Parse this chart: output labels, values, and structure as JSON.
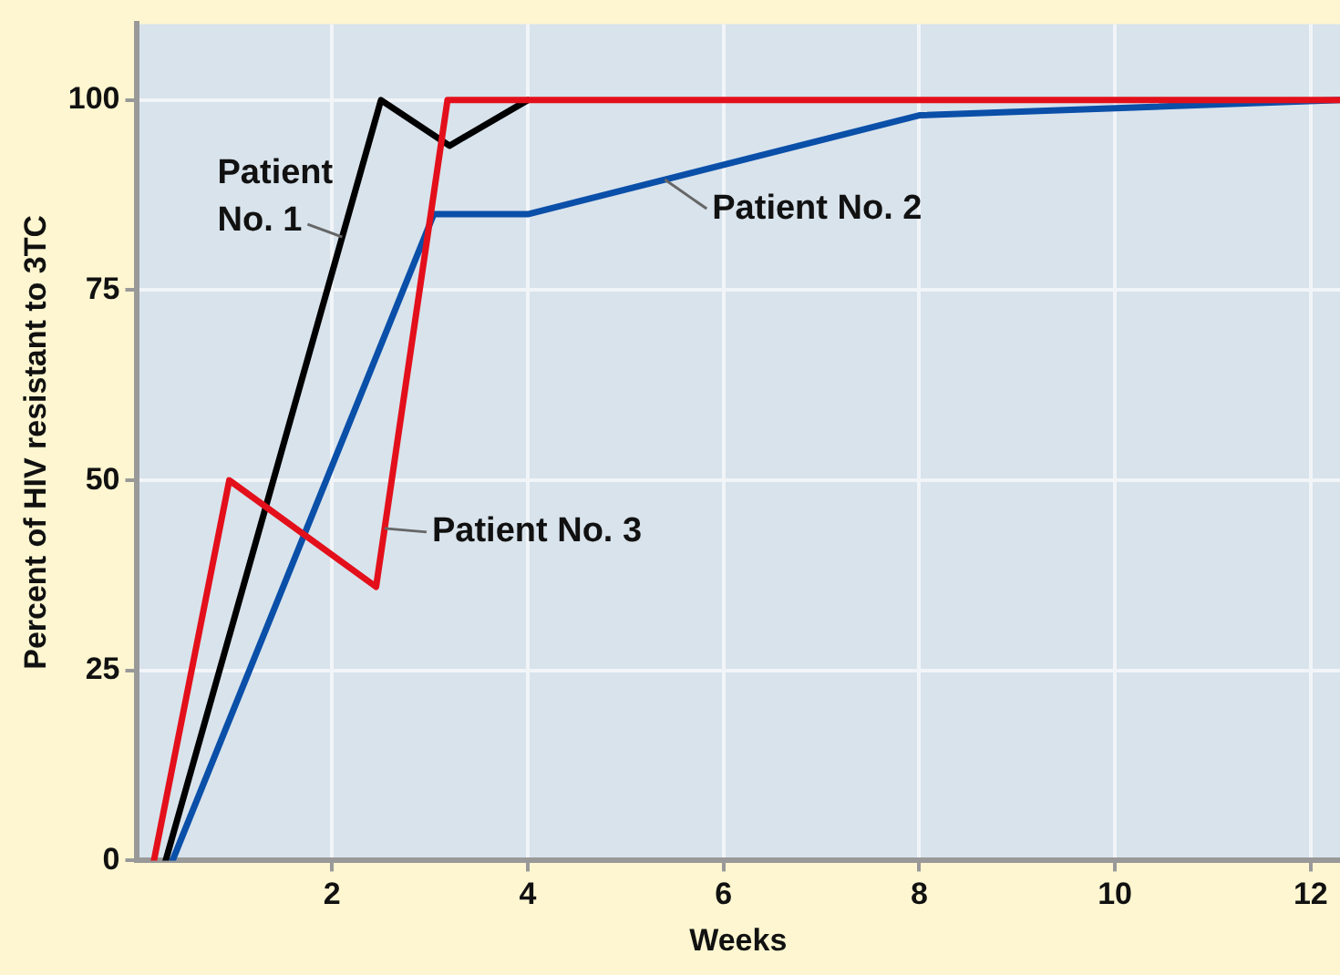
{
  "chart_data": {
    "type": "line",
    "xlabel": "Weeks",
    "ylabel": "Percent of HIV resistant to 3TC",
    "xlim": [
      0,
      12.3
    ],
    "xticks": [
      2,
      4,
      6,
      8,
      10,
      12
    ],
    "ylim": [
      0,
      110
    ],
    "yticks": [
      0,
      25,
      50,
      75,
      100
    ],
    "grid": true,
    "legend": false,
    "marker": "none",
    "line_style": "solid",
    "series": [
      {
        "name": "Patient No. 1",
        "color": "#000000",
        "x": [
          0.3,
          2.5,
          3.2,
          4
        ],
        "values": [
          0,
          100,
          94,
          100
        ]
      },
      {
        "name": "Patient No. 2",
        "color": "#0a4fa8",
        "x": [
          0.37,
          3.04,
          4,
          8,
          12.3
        ],
        "values": [
          0,
          85,
          85,
          98,
          100
        ]
      },
      {
        "name": "Patient No. 3",
        "color": "#e3101b",
        "x": [
          0.18,
          0.95,
          2.45,
          3.18,
          12.3
        ],
        "values": [
          0,
          50,
          36,
          100,
          100
        ]
      }
    ]
  }
}
